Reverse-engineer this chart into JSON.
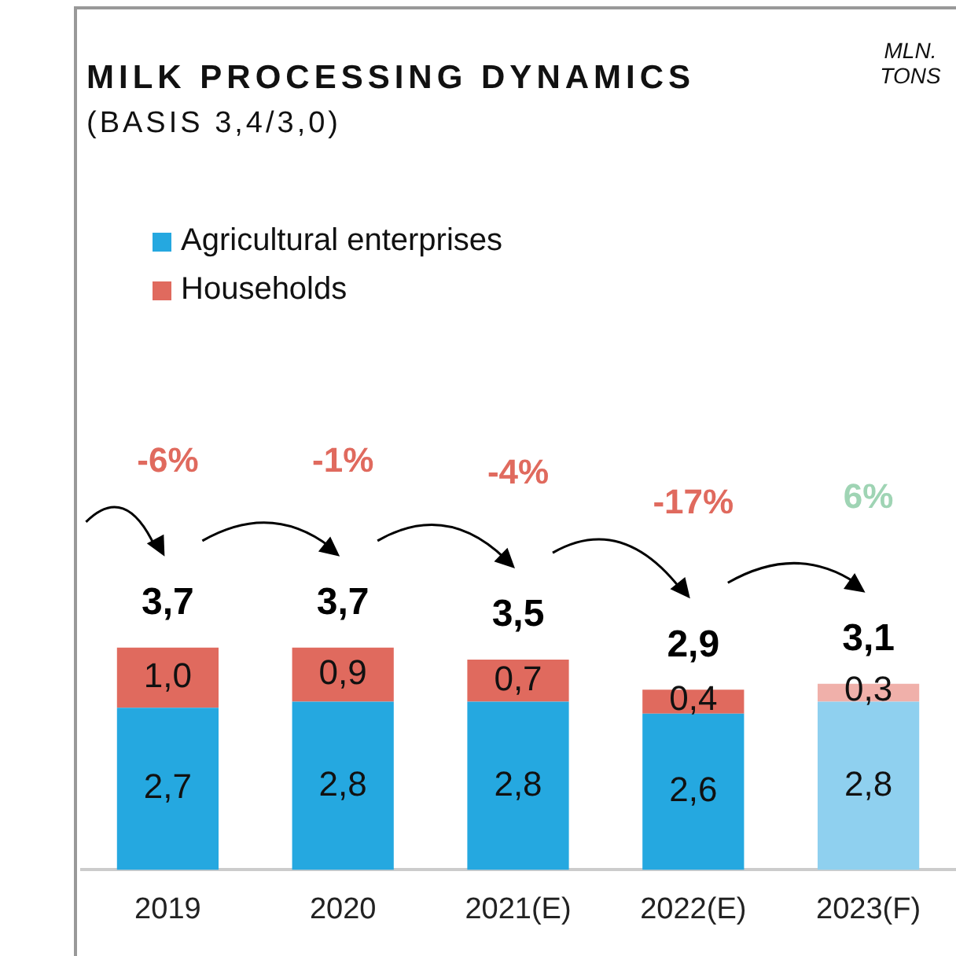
{
  "chart_data": {
    "type": "bar",
    "title": "MILK PROCESSING DYNAMICS",
    "subtitle": "(BASIS 3,4/3,0)",
    "categories": [
      "2019",
      "2020",
      "2021(E)",
      "2022(E)",
      "2023(F)"
    ],
    "stacked": true,
    "legend": "top left",
    "series": [
      {
        "name": "Agricultural enterprises",
        "color": "#25a8e0",
        "colors": [
          "#25a8e0",
          "#25a8e0",
          "#25a8e0",
          "#25a8e0",
          "#8fd0ef"
        ],
        "values": [
          2.7,
          2.8,
          2.8,
          2.6,
          2.8
        ],
        "value_labels": [
          "2,7",
          "2,8",
          "2,8",
          "2,6",
          "2,8"
        ]
      },
      {
        "name": "Households",
        "color": "#e06a5e",
        "colors": [
          "#e06a5e",
          "#e06a5e",
          "#e06a5e",
          "#e06a5e",
          "#f0b0aa"
        ],
        "values": [
          1.0,
          0.9,
          0.7,
          0.4,
          0.3
        ],
        "value_labels": [
          "1,0",
          "0,9",
          "0,7",
          "0,4",
          "0,3"
        ]
      }
    ],
    "totals": [
      "3,7",
      "3,7",
      "3,5",
      "2,9",
      "3,1"
    ],
    "annotations": [
      "MLN. TONS",
      "-6%",
      "-1%",
      "-4%",
      "-17%",
      "6%"
    ]
  }
}
